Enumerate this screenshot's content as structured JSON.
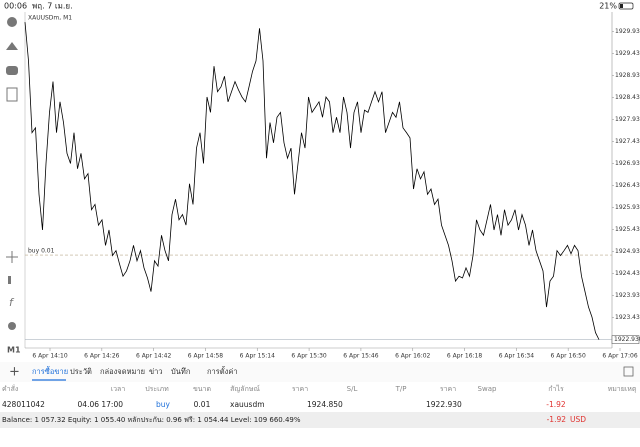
{
  "status_bar": {
    "time": "00:06",
    "date": "พฤ. 7 เม.ย.",
    "battery": "21%"
  },
  "toolbar": {
    "timeframe": "M1"
  },
  "chart_data": {
    "type": "line",
    "title": "XAUUSDm, M1",
    "color": "#000000",
    "x_tick_labels": [
      "6 Apr 14:10",
      "6 Apr 14:26",
      "6 Apr 14:42",
      "6 Apr 14:58",
      "6 Apr 15:14",
      "6 Apr 15:30",
      "6 Apr 15:46",
      "6 Apr 16:02",
      "6 Apr 16:18",
      "6 Apr 16:34",
      "6 Apr 16:50",
      "6 Apr 17:06"
    ],
    "values": [
      1930.14,
      1929.26,
      1927.63,
      1927.74,
      1926.23,
      1925.42,
      1926.93,
      1928.09,
      1928.79,
      1927.63,
      1928.33,
      1927.86,
      1927.16,
      1926.93,
      1927.63,
      1926.81,
      1927.16,
      1926.58,
      1926.7,
      1925.88,
      1926.0,
      1925.53,
      1925.65,
      1925.07,
      1925.42,
      1924.84,
      1924.95,
      1924.65,
      1924.37,
      1924.49,
      1924.72,
      1925.07,
      1924.72,
      1924.95,
      1924.56,
      1924.33,
      1924.02,
      1924.72,
      1924.6,
      1925.3,
      1924.95,
      1924.72,
      1925.77,
      1926.12,
      1925.65,
      1925.77,
      1925.53,
      1926.47,
      1926.0,
      1927.28,
      1927.63,
      1926.93,
      1928.44,
      1928.09,
      1929.14,
      1928.56,
      1928.67,
      1928.91,
      1928.33,
      1928.56,
      1928.79,
      1928.6,
      1928.44,
      1928.33,
      1928.67,
      1929.02,
      1929.26,
      1930.0,
      1929.26,
      1927.05,
      1927.86,
      1927.4,
      1927.98,
      1928.09,
      1927.4,
      1927.05,
      1927.28,
      1926.23,
      1926.93,
      1927.63,
      1927.28,
      1928.44,
      1928.09,
      1928.21,
      1928.33,
      1927.98,
      1928.44,
      1928.33,
      1927.63,
      1927.98,
      1927.63,
      1928.44,
      1928.09,
      1927.28,
      1928.09,
      1928.33,
      1927.63,
      1928.14,
      1928.09,
      1928.33,
      1928.56,
      1928.33,
      1928.56,
      1927.63,
      1927.86,
      1928.09,
      1927.98,
      1928.33,
      1927.74,
      1927.63,
      1927.51,
      1926.35,
      1926.81,
      1926.58,
      1926.74,
      1926.23,
      1926.35,
      1926.0,
      1926.12,
      1925.53,
      1925.3,
      1925.07,
      1924.72,
      1924.26,
      1924.37,
      1924.33,
      1924.56,
      1924.37,
      1924.84,
      1925.65,
      1925.42,
      1925.3,
      1925.65,
      1926.0,
      1925.42,
      1925.77,
      1925.3,
      1925.88,
      1925.53,
      1925.65,
      1925.88,
      1925.42,
      1925.77,
      1925.53,
      1925.07,
      1925.42,
      1924.95,
      1924.72,
      1924.49,
      1923.67,
      1924.26,
      1924.37,
      1924.95,
      1924.84,
      1924.95,
      1925.07,
      1924.88,
      1925.07,
      1924.95,
      1924.37,
      1924.02,
      1923.67,
      1923.44,
      1923.09,
      1922.93
    ],
    "ylim": [
      1922.74,
      1930.37
    ],
    "yticks": [
      {
        "value": 1929.93,
        "label": "1929.930"
      },
      {
        "value": 1929.43,
        "label": "1929.430"
      },
      {
        "value": 1928.93,
        "label": "1928.930"
      },
      {
        "value": 1928.43,
        "label": "1928.430"
      },
      {
        "value": 1927.93,
        "label": "1927.930"
      },
      {
        "value": 1927.43,
        "label": "1927.430"
      },
      {
        "value": 1926.93,
        "label": "1926.930"
      },
      {
        "value": 1926.43,
        "label": "1926.430"
      },
      {
        "value": 1925.93,
        "label": "1925.930"
      },
      {
        "value": 1925.43,
        "label": "1925.430"
      },
      {
        "value": 1924.93,
        "label": "1924.930"
      },
      {
        "value": 1924.43,
        "label": "1924.430"
      },
      {
        "value": 1923.93,
        "label": "1923.930"
      },
      {
        "value": 1923.43,
        "label": "1923.430"
      }
    ],
    "order_line": {
      "value": 1924.85,
      "label": "buy 0.01"
    },
    "price_line": {
      "value": 1922.93,
      "label": "1922.930"
    },
    "grid": true
  },
  "tabs": [
    "การซื้อขาย",
    "ประวัติ",
    "กล่องจดหมาย",
    "ข่าว",
    "บันทึก",
    "การตั้งค่า"
  ],
  "active_tab": 0,
  "table": {
    "columns": [
      "คำสั่ง",
      "เวลา",
      "ประเภท",
      "ขนาด",
      "สัญลักษณ์",
      "ราคา",
      "S/L",
      "T/P",
      "ราคา",
      "Swap",
      "กำไร",
      "หมายเหตุ"
    ],
    "rows": [
      {
        "order": "428011042",
        "time": "04.06 17:00",
        "type": "buy",
        "volume": "0.01",
        "symbol": "xauusdm",
        "price": "1924.850",
        "current_price": "1922.930",
        "profit": "-1.92"
      }
    ]
  },
  "footer": {
    "summary": "Balance: 1 057.32 Equity: 1 055.40 หลักประกัน: 0.96 ฟรี: 1 054.44 Level: 109 660.49%",
    "profit": "-1.92",
    "currency": "USD"
  }
}
